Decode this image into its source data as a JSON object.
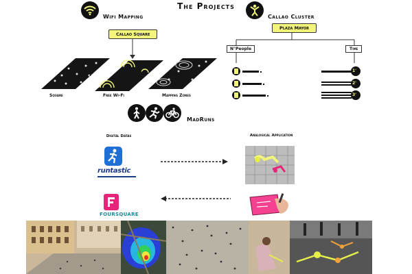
{
  "title": "The Projects",
  "wifi": {
    "heading": "Wifi Mapping",
    "tag": "Callao Square",
    "labels": [
      "Square",
      "Free Wi-Fi",
      "Mapping Zones"
    ],
    "operators": [
      "+",
      "="
    ]
  },
  "cluster": {
    "heading": "Callao Cluster",
    "tag": "Plaza Mayor",
    "people_label": "N°People",
    "time_label": "Time",
    "time_values": [
      "1'",
      "2'",
      "3'"
    ]
  },
  "madruns": {
    "heading": "MadRuns",
    "digital_label": "Digital Datas",
    "analog_label": "Analogical Application",
    "runtastic_logo": "runtastic",
    "foursquare_logo": "FOURSQUARE"
  },
  "icons": {
    "wifi": "wifi-icon",
    "cluster": "person-icon",
    "walk": "walk-icon",
    "run": "run-icon",
    "bike": "bike-icon"
  },
  "colors": {
    "accent": "#f2f57a",
    "dark": "#111111"
  }
}
